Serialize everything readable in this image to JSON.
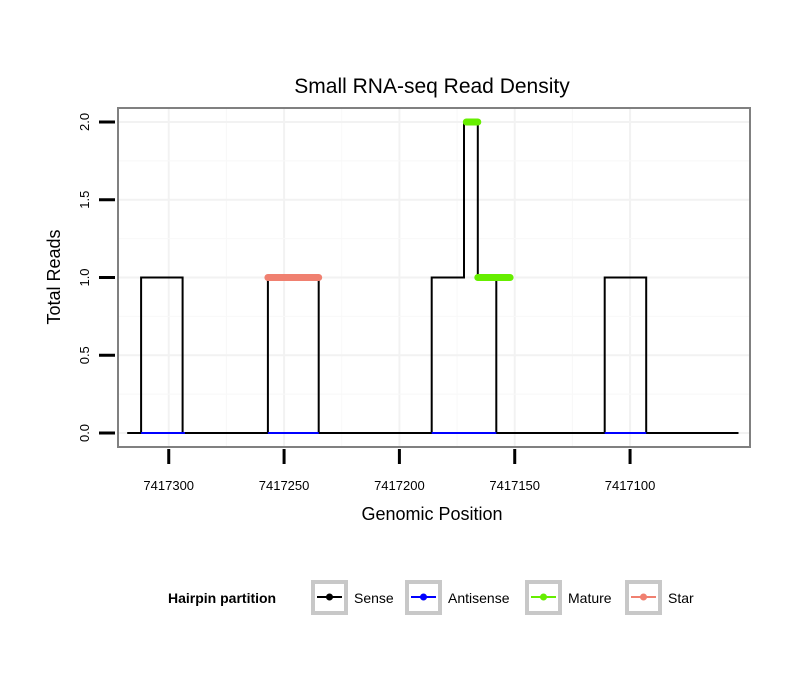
{
  "chart_data": {
    "type": "line",
    "title": "Small RNA-seq Read Density",
    "xlabel": "Genomic Position",
    "ylabel": "Total Reads",
    "xlim": [
      7417322,
      7417048
    ],
    "x_reversed": true,
    "ylim": [
      -0.09,
      2.09
    ],
    "x_ticks": [
      7417300,
      7417250,
      7417200,
      7417150,
      7417100
    ],
    "x_tick_labels": [
      "7417300",
      "7417250",
      "7417200",
      "7417150",
      "7417100"
    ],
    "y_ticks": [
      0.0,
      0.5,
      1.0,
      1.5,
      2.0
    ],
    "y_tick_labels": [
      "0.0",
      "0.5",
      "1.0",
      "1.5",
      "2.0"
    ],
    "grid": true,
    "legend": {
      "position": "bottom",
      "title": "Hairpin partition",
      "entries": [
        "Sense",
        "Antisense",
        "Mature",
        "Star"
      ]
    },
    "series": [
      {
        "name": "Sense",
        "color": "#000000",
        "style": "line",
        "points": [
          [
            7417318,
            0
          ],
          [
            7417312,
            0
          ],
          [
            7417312,
            1
          ],
          [
            7417294,
            1
          ],
          [
            7417294,
            0
          ],
          [
            7417257,
            0
          ],
          [
            7417257,
            1
          ],
          [
            7417235,
            1
          ],
          [
            7417235,
            0
          ],
          [
            7417186,
            0
          ],
          [
            7417186,
            1
          ],
          [
            7417172,
            1
          ],
          [
            7417172,
            2
          ],
          [
            7417166,
            2
          ],
          [
            7417166,
            1
          ],
          [
            7417158,
            1
          ],
          [
            7417158,
            0
          ],
          [
            7417111,
            0
          ],
          [
            7417111,
            1
          ],
          [
            7417093,
            1
          ],
          [
            7417093,
            0
          ],
          [
            7417053,
            0
          ]
        ]
      },
      {
        "name": "Antisense",
        "color": "#0000ff",
        "style": "line",
        "points": [
          [
            7417312,
            0
          ],
          [
            7417293,
            0
          ],
          [
            7417257,
            0
          ],
          [
            7417235,
            0
          ],
          [
            7417186,
            0
          ],
          [
            7417158,
            0
          ],
          [
            7417111,
            0
          ],
          [
            7417093,
            0
          ]
        ]
      },
      {
        "name": "Mature",
        "color": "#66ee00",
        "style": "thick",
        "segments": [
          [
            [
              7417171,
              2
            ],
            [
              7417166,
              2
            ]
          ],
          [
            [
              7417166,
              1
            ],
            [
              7417152,
              1
            ]
          ]
        ]
      },
      {
        "name": "Star",
        "color": "#f08070",
        "style": "thick",
        "segments": [
          [
            [
              7417257,
              1
            ],
            [
              7417235,
              1
            ]
          ]
        ]
      }
    ]
  }
}
